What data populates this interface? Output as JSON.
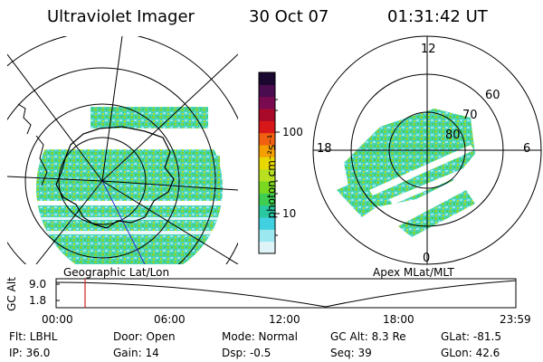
{
  "header": {
    "instrument": "Ultraviolet Imager",
    "date": "30 Oct 07",
    "time": "01:31:42 UT"
  },
  "left_panel": {
    "caption": "Geographic Lat/Lon"
  },
  "right_panel": {
    "caption": "Apex MLat/MLT",
    "mlt_labels": {
      "top": "12",
      "left": "18",
      "right": "6",
      "bottom": "0"
    },
    "lat_labels": [
      "60",
      "70",
      "80"
    ]
  },
  "colorbar": {
    "unit_label": "photon cm⁻²s⁻¹",
    "ticks": [
      "100",
      "10"
    ],
    "colors": [
      "#1a0830",
      "#4b0b4f",
      "#7a0a50",
      "#aa0a2a",
      "#d81818",
      "#f06010",
      "#f5a000",
      "#e8d800",
      "#b8e020",
      "#7ad820",
      "#3ecf50",
      "#2ac8a0",
      "#40d0e0",
      "#9ce8f0",
      "#dff4f8"
    ]
  },
  "altitude_plot": {
    "ylabel": "GC Alt",
    "yticks": [
      "9.0",
      "1.8"
    ],
    "xticks": [
      "00:00",
      "06:00",
      "12:00",
      "18:00",
      "23:59"
    ],
    "current_time_fraction": 0.063
  },
  "footer": {
    "flt": "Flt: LBHL",
    "ip": "IP: 36.0",
    "door": "Door: Open",
    "gain": "Gain: 14",
    "mode": "Mode: Normal",
    "dsp": "Dsp:   -0.5",
    "gcalt": "GC Alt: 8.3 Re",
    "seq": "Seq: 39",
    "glat": "GLat:  -81.5",
    "glon": "GLon:  42.6"
  },
  "colors": {
    "aurora_green": "#6ad43a",
    "aurora_cyan": "#40d0d8",
    "marker": "#d02020"
  }
}
